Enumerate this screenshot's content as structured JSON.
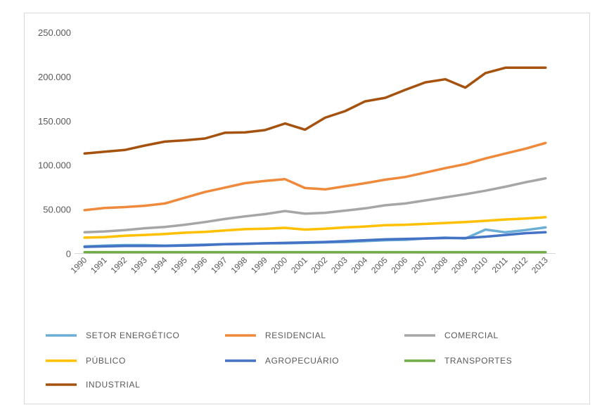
{
  "chart_data": {
    "type": "line",
    "categories": [
      "1990",
      "1991",
      "1992",
      "1993",
      "1994",
      "1995",
      "1996",
      "1997",
      "1998",
      "1999",
      "2000",
      "2001",
      "2002",
      "2003",
      "2004",
      "2005",
      "2006",
      "2007",
      "2008",
      "2009",
      "2010",
      "2011",
      "2012",
      "2013"
    ],
    "y_ticks": [
      "0",
      "50.000",
      "100.000",
      "150.000",
      "200.000",
      "250.000"
    ],
    "ylim": [
      0,
      250000
    ],
    "grid": false,
    "legend_position": "bottom",
    "series": [
      {
        "name": "SETOR ENERGÉTICO",
        "color": "#6baed6",
        "values": [
          8000,
          9000,
          9500,
          9500,
          9000,
          9500,
          10000,
          10500,
          11000,
          11500,
          11500,
          12000,
          12500,
          13000,
          14000,
          15000,
          15500,
          17000,
          18000,
          17000,
          27000,
          24000,
          26500,
          29500
        ]
      },
      {
        "name": "RESIDENCIAL",
        "color": "#ef8a3c",
        "values": [
          49000,
          51500,
          52500,
          54000,
          56500,
          63000,
          69500,
          74500,
          79500,
          82000,
          84000,
          74000,
          72500,
          76000,
          79500,
          83500,
          86500,
          91500,
          96500,
          101000,
          107500,
          113000,
          118500,
          125000
        ]
      },
      {
        "name": "COMERCIAL",
        "color": "#a6a6a6",
        "values": [
          24000,
          25000,
          26500,
          28500,
          30000,
          32500,
          35500,
          39000,
          42000,
          44500,
          48000,
          45000,
          46000,
          48500,
          51000,
          54500,
          56500,
          60000,
          63500,
          67000,
          71000,
          75500,
          80500,
          85000
        ]
      },
      {
        "name": "PÚBLICO",
        "color": "#ffc000",
        "values": [
          18000,
          18500,
          20000,
          21000,
          22000,
          23500,
          24500,
          26000,
          27500,
          28000,
          29000,
          27000,
          28000,
          29500,
          30500,
          32000,
          32500,
          33500,
          34500,
          35500,
          37000,
          38500,
          39500,
          41000
        ]
      },
      {
        "name": "AGROPECUÁRIO",
        "color": "#4472c4",
        "values": [
          7500,
          8000,
          8500,
          8500,
          8500,
          9000,
          9500,
          10500,
          11000,
          11500,
          12000,
          12500,
          13000,
          14000,
          15000,
          16000,
          16500,
          17000,
          17500,
          17500,
          19000,
          21000,
          23000,
          24000
        ]
      },
      {
        "name": "TRANSPORTES",
        "color": "#70ad47",
        "values": [
          1500,
          1500,
          1500,
          1500,
          1500,
          1500,
          1500,
          1500,
          1500,
          1500,
          1500,
          1500,
          1500,
          1500,
          1500,
          1500,
          1500,
          1500,
          1500,
          1500,
          1500,
          1500,
          1500,
          1500
        ]
      },
      {
        "name": "INDUSTRIAL",
        "color": "#a5520f",
        "values": [
          113000,
          115000,
          117000,
          122000,
          126500,
          128000,
          130000,
          136500,
          137000,
          139500,
          147000,
          140000,
          153500,
          161000,
          172000,
          176000,
          185000,
          193500,
          197000,
          187500,
          204000,
          210000,
          210000,
          210000
        ]
      }
    ]
  }
}
